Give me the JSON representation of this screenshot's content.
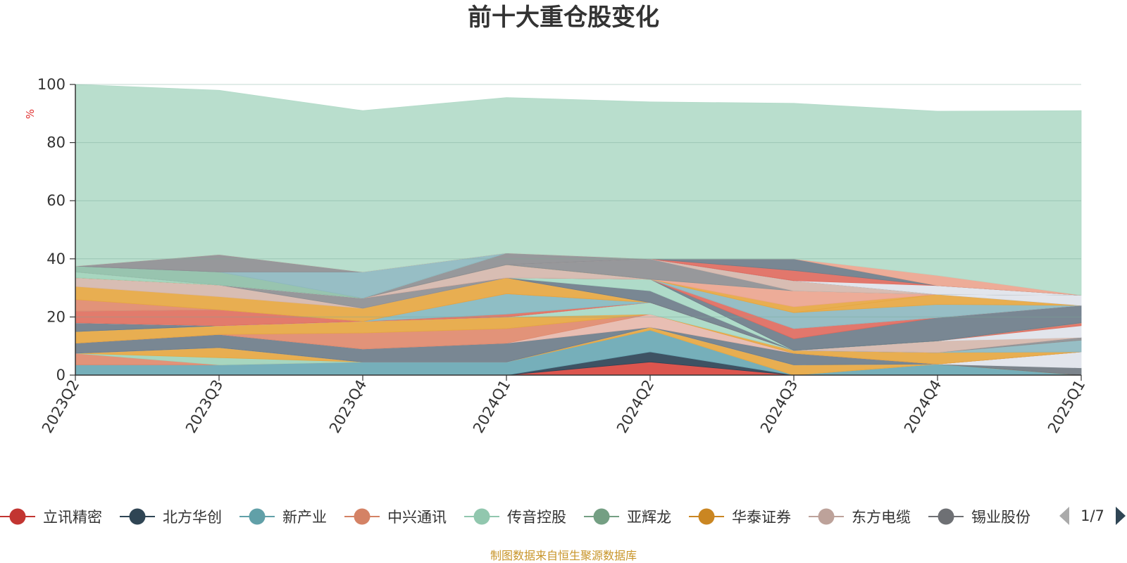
{
  "chart_data": {
    "type": "area",
    "stacked": true,
    "title": "前十大重仓股变化",
    "ylabel": "%",
    "ylim": [
      0,
      100
    ],
    "yticks": [
      0,
      20,
      40,
      60,
      80,
      100
    ],
    "grid": true,
    "legend_position": "bottom",
    "categories": [
      "2023Q2",
      "2023Q3",
      "2023Q4",
      "2024Q1",
      "2024Q2",
      "2024Q3",
      "2024Q4",
      "2025Q1"
    ],
    "series": [
      {
        "color": "#d9463f",
        "values": [
          0,
          0,
          0,
          0,
          4.5,
          0,
          0,
          0
        ]
      },
      {
        "color": "#2e4356",
        "values": [
          0,
          0,
          0,
          0,
          3.5,
          0,
          0,
          0
        ]
      },
      {
        "color": "#6aa8b4",
        "values": [
          3.5,
          3.5,
          4.5,
          4.5,
          7.5,
          0,
          3.8,
          0
        ]
      },
      {
        "color": "#e08a6e",
        "values": [
          4,
          0,
          0,
          0,
          0,
          0,
          0,
          0
        ]
      },
      {
        "color": "#9fd3ba",
        "values": [
          0,
          2.5,
          0,
          0,
          0,
          0,
          0,
          0
        ]
      },
      {
        "color": "#e6a742",
        "values": [
          0,
          3.5,
          0,
          0,
          1,
          3.5,
          0,
          0
        ]
      },
      {
        "color": "#717a82",
        "values": [
          0,
          0,
          0,
          0,
          0,
          0,
          0,
          2.5
        ]
      },
      {
        "color": "#dfe3ea",
        "values": [
          0,
          0,
          0,
          0,
          0,
          0,
          0,
          5.5
        ]
      },
      {
        "color": "#6e7d8a",
        "values": [
          3.5,
          4.5,
          4.5,
          6.5,
          0,
          4,
          0,
          0
        ]
      },
      {
        "color": "#e6b8ac",
        "values": [
          0,
          0,
          0,
          0,
          4.5,
          0,
          0,
          0
        ]
      },
      {
        "color": "#e08a6e",
        "values": [
          0,
          0,
          5.5,
          5,
          0,
          0,
          0,
          0
        ]
      },
      {
        "color": "#e6a742",
        "values": [
          4,
          3,
          4,
          4,
          0,
          1,
          4,
          0
        ]
      },
      {
        "color": "#8eb8c0",
        "values": [
          0,
          0,
          0,
          0,
          0,
          0,
          0,
          4
        ]
      },
      {
        "color": "#a8d8c4",
        "values": [
          0,
          0,
          0,
          0,
          4,
          0,
          0,
          0
        ]
      },
      {
        "color": "#8e8f93",
        "values": [
          0,
          0,
          0,
          0,
          0,
          0,
          0,
          1
        ]
      },
      {
        "color": "#6e7d8a",
        "values": [
          3,
          0,
          0,
          0,
          0,
          0,
          0,
          0
        ]
      },
      {
        "color": "#d5b7ad",
        "values": [
          0,
          0,
          0,
          0,
          0,
          0,
          4,
          0
        ]
      },
      {
        "color": "#dfe3ea",
        "values": [
          0,
          0,
          0,
          0,
          0,
          0,
          0,
          4
        ]
      },
      {
        "color": "#e07060",
        "values": [
          4,
          5.5,
          0,
          1,
          0,
          0,
          0,
          1
        ]
      },
      {
        "color": "#86b9c0",
        "values": [
          0,
          0,
          0,
          7,
          0,
          0,
          0,
          0
        ]
      },
      {
        "color": "#e08a6e",
        "values": [
          4,
          0,
          0,
          0,
          0,
          0,
          0,
          0
        ]
      },
      {
        "color": "#e6a742",
        "values": [
          4.5,
          4.5,
          4.5,
          5.5,
          0,
          0,
          0,
          0
        ]
      },
      {
        "color": "#d5b7ad",
        "values": [
          3,
          4,
          0,
          0,
          0,
          0,
          0,
          0
        ]
      },
      {
        "color": "#8e8f93",
        "values": [
          0,
          0,
          3.5,
          0,
          0,
          0,
          0,
          0
        ]
      },
      {
        "color": "#6e7d8a",
        "values": [
          0,
          0,
          0,
          0,
          4,
          0,
          0,
          0
        ]
      },
      {
        "color": "#a8d8c4",
        "values": [
          0,
          0,
          0,
          0,
          4,
          0,
          0,
          0
        ]
      },
      {
        "color": "#6e7d8a",
        "values": [
          0,
          0,
          0,
          0,
          0,
          4,
          8,
          6
        ]
      },
      {
        "color": "#e06b5f",
        "values": [
          0,
          0,
          0,
          0,
          0,
          3.5,
          0,
          0
        ]
      },
      {
        "color": "#d5b7ad",
        "values": [
          0,
          0,
          0,
          4.5,
          0,
          0,
          0,
          0
        ]
      },
      {
        "color": "#8eb8c0",
        "values": [
          0,
          0,
          0,
          0,
          0,
          5.5,
          4.5,
          0
        ]
      },
      {
        "color": "#e6a742",
        "values": [
          0,
          0,
          0,
          0,
          0,
          0,
          3.5,
          0
        ]
      },
      {
        "color": "#e6a742",
        "values": [
          0,
          0,
          0,
          0,
          0,
          2,
          0,
          0
        ]
      },
      {
        "color": "#eba58f",
        "values": [
          0,
          0,
          0,
          0,
          0,
          5.5,
          0,
          0
        ]
      },
      {
        "color": "#9fd3ba",
        "values": [
          2,
          0,
          0,
          0,
          0,
          0,
          0,
          0
        ]
      },
      {
        "color": "#8e8f93",
        "values": [
          0,
          0,
          0,
          0,
          7,
          0,
          0,
          0
        ]
      },
      {
        "color": "#d5b7ad",
        "values": [
          0,
          0,
          0,
          0,
          0,
          3.5,
          0,
          0
        ]
      },
      {
        "color": "#8e8f93",
        "values": [
          0,
          0,
          0,
          4,
          0,
          0,
          0,
          0
        ]
      },
      {
        "color": "#dfe3ea",
        "values": [
          0,
          0,
          0,
          0,
          0,
          0,
          0,
          3.5
        ]
      },
      {
        "color": "#8fbfa8",
        "values": [
          2,
          4.5,
          0,
          0,
          0,
          0,
          0,
          0
        ]
      },
      {
        "color": "#8eb8c0",
        "values": [
          0,
          0,
          9,
          0,
          0,
          0,
          0,
          0
        ]
      },
      {
        "color": "#8e8f93",
        "values": [
          0,
          0,
          0,
          0,
          0,
          0,
          0,
          0
        ]
      },
      {
        "color": "#8e8f93",
        "values": [
          0,
          6,
          0,
          0,
          0,
          0,
          0,
          0
        ]
      },
      {
        "color": "#dfe3ea",
        "values": [
          0,
          0,
          0,
          0,
          0,
          0,
          3,
          0
        ]
      },
      {
        "color": "#e06b5f",
        "values": [
          0,
          0,
          0,
          0,
          0,
          3.5,
          0,
          0
        ]
      },
      {
        "color": "#6e7d8a",
        "values": [
          0,
          0,
          0,
          0,
          0,
          4,
          0,
          0
        ]
      },
      {
        "color": "#eba58f",
        "values": [
          0,
          0,
          0,
          0,
          0,
          0,
          3.5,
          0
        ]
      },
      {
        "color": "#b3dbc9",
        "values": [
          62.5,
          56.5,
          55.5,
          53.5,
          54,
          53.5,
          56.5,
          63.5
        ]
      }
    ],
    "legend": [
      {
        "name": "立讯精密",
        "color": "#c23531"
      },
      {
        "name": "北方华创",
        "color": "#2f4554"
      },
      {
        "name": "新产业",
        "color": "#61a0a8"
      },
      {
        "name": "中兴通讯",
        "color": "#d48265"
      },
      {
        "name": "传音控股",
        "color": "#91c7ae"
      },
      {
        "name": "亚辉龙",
        "color": "#749f83"
      },
      {
        "name": "华泰证券",
        "color": "#ca8622"
      },
      {
        "name": "东方电缆",
        "color": "#bda29a"
      },
      {
        "name": "锡业股份",
        "color": "#6e7074"
      }
    ],
    "legend_page": "1/7"
  },
  "source": "制图数据来自恒生聚源数据库"
}
